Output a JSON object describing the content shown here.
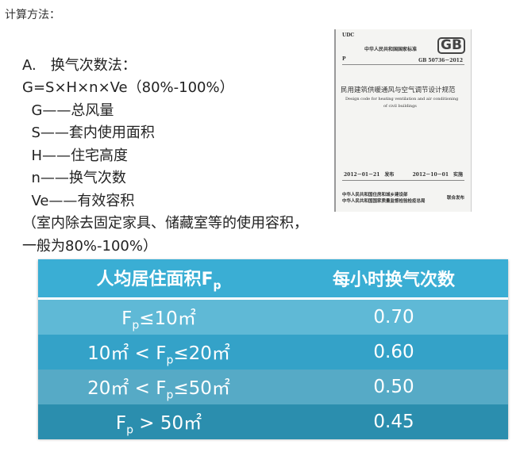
{
  "intro": "计算方法：",
  "method_lines": [
    "A.　换气次数法：",
    "G=S×H×n×Ve（80%-100%）",
    "  G——总风量",
    "  S——套内使用面积",
    "  H——住宅高度",
    "  n——换气次数",
    "  Ve——有效容积",
    "（室内除去固定家具、储藏室等的使用容积，",
    "一般为80%-100%）"
  ],
  "cover": {
    "udc": "UDC",
    "org": "中华人民共和国国家标准",
    "logo": "GB",
    "p": "P",
    "code": "GB 50736－2012",
    "title_cn": "民用建筑供暖通风与空气调节设计规范",
    "title_en1": "Design code for heating ventilation and air conditioning",
    "title_en2": "of civil buildings",
    "issue": "2012－01－21　发布",
    "effective": "2012－10－01　实施",
    "pub1": "中华人民共和国住房和城乡建设部",
    "pub2": "中华人民共和国国家质量监督检验检疫总局",
    "joint": "联合发布"
  },
  "table": {
    "headers": [
      {
        "main": "人均居住面积F",
        "sub": "p"
      },
      {
        "main": "每小时换气次数",
        "sub": ""
      }
    ],
    "rows": [
      {
        "pre": "F",
        "sub": "p",
        "post": "≤10㎡",
        "value": "0.70",
        "color": "#5fb9d6"
      },
      {
        "pre": "10㎡ < F",
        "sub": "p",
        "post": "≤20㎡",
        "value": "0.60",
        "color": "#34a2c8"
      },
      {
        "pre": "20㎡ < F",
        "sub": "p",
        "post": "≤50㎡",
        "value": "0.50",
        "color": "#56aac6"
      },
      {
        "pre": "F",
        "sub": "p",
        "post": " > 50㎡",
        "value": "0.45",
        "color": "#2b8eae"
      }
    ]
  }
}
